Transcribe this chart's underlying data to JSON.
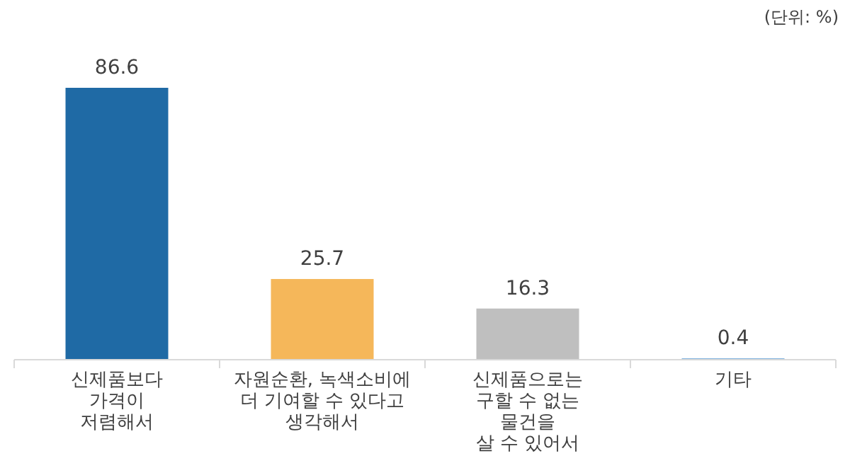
{
  "chart_data": {
    "type": "bar",
    "categories": [
      "신제품보다\n가격이\n저렴해서",
      "자원순환, 녹색소비에\n더 기여할 수 있다고\n생각해서",
      "신제품으로는\n구할 수 없는\n물건을\n살 수 있어서",
      "기타"
    ],
    "values": [
      86.6,
      25.7,
      16.3,
      0.4
    ],
    "colors": [
      "#1f6aa5",
      "#f5b75a",
      "#bfbfbf",
      "#5b9bd5"
    ],
    "data_labels": true,
    "annotations": [
      "(단위: %)"
    ]
  }
}
